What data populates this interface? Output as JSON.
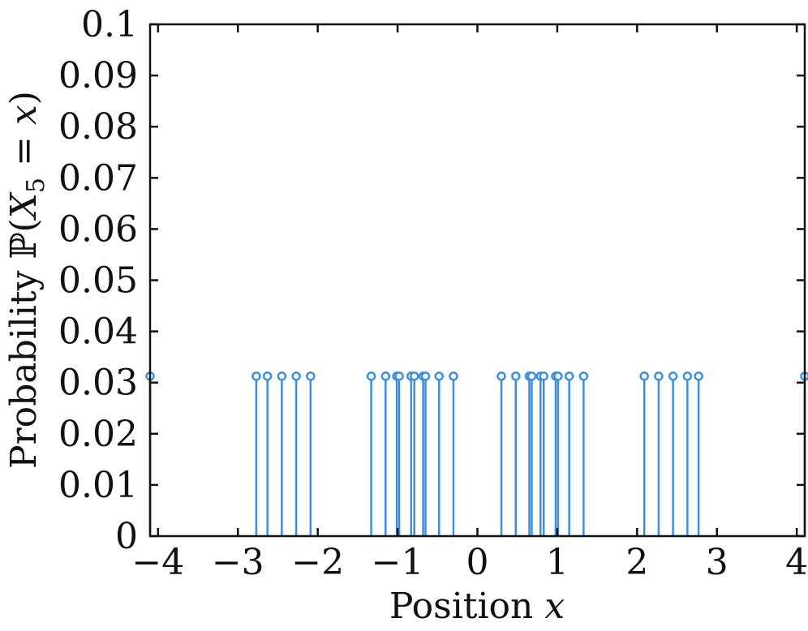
{
  "chart_data": {
    "type": "stem",
    "xlabel": "Position x",
    "xlabel_parts": {
      "text": "Position ",
      "var": "x"
    },
    "ylabel": "Probability ℙ(X5 = x)",
    "ylabel_parts": {
      "text": "Probability ",
      "prob": "ℙ",
      "open": "(",
      "var": "X",
      "sub": "5",
      "eq": " = ",
      "var2": "x",
      "close": ")"
    },
    "xlim": [
      -4.1,
      4.1
    ],
    "ylim": [
      0,
      0.1
    ],
    "xticks": [
      -4,
      -3,
      -2,
      -1,
      0,
      1,
      2,
      3,
      4
    ],
    "xtick_labels": [
      "−4",
      "−3",
      "−2",
      "−1",
      "0",
      "1",
      "2",
      "3",
      "4"
    ],
    "yticks": [
      0,
      0.01,
      0.02,
      0.03,
      0.04,
      0.05,
      0.06,
      0.07,
      0.08,
      0.09,
      0.1
    ],
    "ytick_labels": [
      "0",
      "0.01",
      "0.02",
      "0.03",
      "0.04",
      "0.05",
      "0.06",
      "0.07",
      "0.08",
      "0.09",
      "0.1"
    ],
    "grid": false,
    "color": "#3d8fdc",
    "points": [
      {
        "x": -4.1,
        "y": 0.03125
      },
      {
        "x": -2.77,
        "y": 0.03125
      },
      {
        "x": -2.63,
        "y": 0.03125
      },
      {
        "x": -2.45,
        "y": 0.03125
      },
      {
        "x": -2.27,
        "y": 0.03125
      },
      {
        "x": -2.09,
        "y": 0.03125
      },
      {
        "x": -1.33,
        "y": 0.03125
      },
      {
        "x": -1.15,
        "y": 0.03125
      },
      {
        "x": -1.01,
        "y": 0.03125
      },
      {
        "x": -0.98,
        "y": 0.03125
      },
      {
        "x": -0.83,
        "y": 0.03125
      },
      {
        "x": -0.79,
        "y": 0.03125
      },
      {
        "x": -0.68,
        "y": 0.03125
      },
      {
        "x": -0.65,
        "y": 0.03125
      },
      {
        "x": -0.48,
        "y": 0.03125
      },
      {
        "x": -0.3,
        "y": 0.03125
      },
      {
        "x": 0.3,
        "y": 0.03125
      },
      {
        "x": 0.48,
        "y": 0.03125
      },
      {
        "x": 0.65,
        "y": 0.03125
      },
      {
        "x": 0.68,
        "y": 0.03125
      },
      {
        "x": 0.79,
        "y": 0.03125
      },
      {
        "x": 0.83,
        "y": 0.03125
      },
      {
        "x": 0.98,
        "y": 0.03125
      },
      {
        "x": 1.01,
        "y": 0.03125
      },
      {
        "x": 1.15,
        "y": 0.03125
      },
      {
        "x": 1.33,
        "y": 0.03125
      },
      {
        "x": 2.09,
        "y": 0.03125
      },
      {
        "x": 2.27,
        "y": 0.03125
      },
      {
        "x": 2.45,
        "y": 0.03125
      },
      {
        "x": 2.63,
        "y": 0.03125
      },
      {
        "x": 2.77,
        "y": 0.03125
      },
      {
        "x": 4.1,
        "y": 0.03125
      }
    ]
  }
}
